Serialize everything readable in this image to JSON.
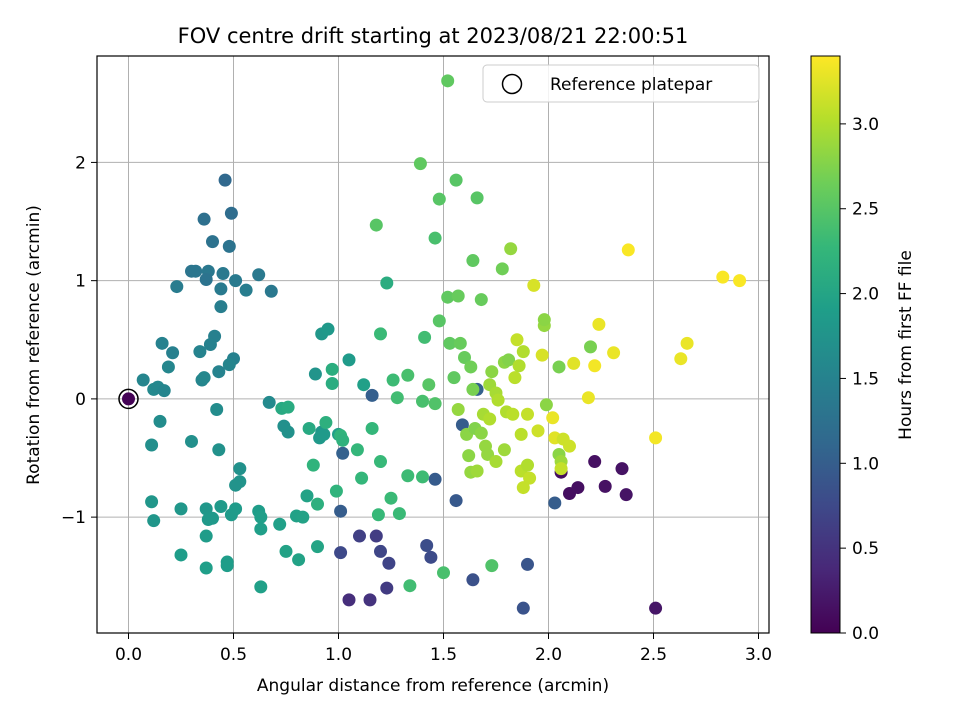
{
  "chart_data": {
    "type": "scatter",
    "title": "FOV centre drift starting at 2023/08/21 22:00:51",
    "xlabel": "Angular distance from reference (arcmin)",
    "ylabel": "Rotation from reference (arcmin)",
    "xlim": [
      -0.15,
      3.05
    ],
    "ylim": [
      -1.98,
      2.9
    ],
    "xticks": [
      0.0,
      0.5,
      1.0,
      1.5,
      2.0,
      2.5,
      3.0
    ],
    "xtick_labels": [
      "0.0",
      "0.5",
      "1.0",
      "1.5",
      "2.0",
      "2.5",
      "3.0"
    ],
    "yticks": [
      -1,
      0,
      1,
      2
    ],
    "ytick_labels": [
      "−1",
      "0",
      "1",
      "2"
    ],
    "grid": true,
    "legend": {
      "placement": "top-right",
      "entries": [
        "Reference platepar"
      ]
    },
    "reference_point": {
      "x": 0.0,
      "y": 0.0,
      "label": "Reference platepar"
    },
    "colorbar": {
      "label": "Hours from first FF file",
      "colormap": "viridis",
      "range": [
        0.0,
        3.4
      ],
      "ticks": [
        0.0,
        0.5,
        1.0,
        1.5,
        2.0,
        2.5,
        3.0
      ],
      "tick_labels": [
        "0.0",
        "0.5",
        "1.0",
        "1.5",
        "2.0",
        "2.5",
        "3.0"
      ]
    },
    "points": [
      {
        "x": 0.0,
        "y": 0.0,
        "c": 0.02
      },
      {
        "x": 2.06,
        "y": -0.62,
        "c": 0.12
      },
      {
        "x": 2.1,
        "y": -0.8,
        "c": 0.13
      },
      {
        "x": 2.14,
        "y": -0.75,
        "c": 0.14
      },
      {
        "x": 2.22,
        "y": -0.53,
        "c": 0.15
      },
      {
        "x": 2.27,
        "y": -0.74,
        "c": 0.16
      },
      {
        "x": 2.35,
        "y": -0.59,
        "c": 0.17
      },
      {
        "x": 2.37,
        "y": -0.81,
        "c": 0.18
      },
      {
        "x": 2.51,
        "y": -1.77,
        "c": 0.2
      },
      {
        "x": 1.05,
        "y": -1.7,
        "c": 0.45
      },
      {
        "x": 1.15,
        "y": -1.7,
        "c": 0.5
      },
      {
        "x": 1.23,
        "y": -1.6,
        "c": 0.6
      },
      {
        "x": 1.1,
        "y": -1.16,
        "c": 0.65
      },
      {
        "x": 1.18,
        "y": -1.16,
        "c": 0.62
      },
      {
        "x": 1.24,
        "y": -1.39,
        "c": 0.7
      },
      {
        "x": 1.01,
        "y": -1.3,
        "c": 0.75
      },
      {
        "x": 1.2,
        "y": -1.29,
        "c": 0.72
      },
      {
        "x": 1.42,
        "y": -1.24,
        "c": 0.8
      },
      {
        "x": 1.44,
        "y": -1.34,
        "c": 0.78
      },
      {
        "x": 1.64,
        "y": -1.53,
        "c": 0.85
      },
      {
        "x": 1.9,
        "y": -1.4,
        "c": 0.9
      },
      {
        "x": 1.88,
        "y": -1.77,
        "c": 0.88
      },
      {
        "x": 1.56,
        "y": -0.86,
        "c": 0.95
      },
      {
        "x": 1.46,
        "y": -0.68,
        "c": 0.98
      },
      {
        "x": 1.01,
        "y": -0.95,
        "c": 1.0
      },
      {
        "x": 1.02,
        "y": -0.46,
        "c": 1.05
      },
      {
        "x": 1.16,
        "y": 0.03,
        "c": 1.02
      },
      {
        "x": 1.59,
        "y": -0.22,
        "c": 1.0
      },
      {
        "x": 1.66,
        "y": 0.08,
        "c": 1.05
      },
      {
        "x": 2.03,
        "y": -0.88,
        "c": 1.0
      },
      {
        "x": 0.46,
        "y": 1.85,
        "c": 1.15
      },
      {
        "x": 0.49,
        "y": 1.57,
        "c": 1.2
      },
      {
        "x": 0.36,
        "y": 1.52,
        "c": 1.25
      },
      {
        "x": 0.4,
        "y": 1.33,
        "c": 1.28
      },
      {
        "x": 0.48,
        "y": 1.29,
        "c": 1.3
      },
      {
        "x": 0.3,
        "y": 1.08,
        "c": 1.32
      },
      {
        "x": 0.32,
        "y": 1.08,
        "c": 1.34
      },
      {
        "x": 0.38,
        "y": 1.08,
        "c": 1.36
      },
      {
        "x": 0.45,
        "y": 1.06,
        "c": 1.38
      },
      {
        "x": 0.51,
        "y": 1.0,
        "c": 1.4
      },
      {
        "x": 0.37,
        "y": 1.01,
        "c": 1.3
      },
      {
        "x": 0.23,
        "y": 0.95,
        "c": 1.42
      },
      {
        "x": 0.44,
        "y": 0.93,
        "c": 1.4
      },
      {
        "x": 0.56,
        "y": 0.92,
        "c": 1.44
      },
      {
        "x": 0.62,
        "y": 1.05,
        "c": 1.38
      },
      {
        "x": 0.68,
        "y": 0.91,
        "c": 1.36
      },
      {
        "x": 0.44,
        "y": 0.78,
        "c": 1.45
      },
      {
        "x": 0.41,
        "y": 0.53,
        "c": 1.48
      },
      {
        "x": 0.16,
        "y": 0.47,
        "c": 1.5
      },
      {
        "x": 0.34,
        "y": 0.4,
        "c": 1.52
      },
      {
        "x": 0.39,
        "y": 0.46,
        "c": 1.5
      },
      {
        "x": 0.21,
        "y": 0.39,
        "c": 1.48
      },
      {
        "x": 0.5,
        "y": 0.34,
        "c": 1.5
      },
      {
        "x": 0.48,
        "y": 0.29,
        "c": 1.55
      },
      {
        "x": 0.19,
        "y": 0.27,
        "c": 1.56
      },
      {
        "x": 0.43,
        "y": 0.23,
        "c": 1.52
      },
      {
        "x": 0.35,
        "y": 0.16,
        "c": 1.55
      },
      {
        "x": 0.36,
        "y": 0.18,
        "c": 1.58
      },
      {
        "x": 0.07,
        "y": 0.16,
        "c": 1.55
      },
      {
        "x": 0.12,
        "y": 0.08,
        "c": 1.6
      },
      {
        "x": 0.14,
        "y": 0.1,
        "c": 1.58
      },
      {
        "x": 0.17,
        "y": 0.07,
        "c": 1.55
      },
      {
        "x": 0.67,
        "y": -0.03,
        "c": 1.62
      },
      {
        "x": 0.42,
        "y": -0.09,
        "c": 1.65
      },
      {
        "x": 0.15,
        "y": -0.19,
        "c": 1.65
      },
      {
        "x": 0.11,
        "y": -0.39,
        "c": 1.68
      },
      {
        "x": 0.3,
        "y": -0.36,
        "c": 1.7
      },
      {
        "x": 0.43,
        "y": -0.43,
        "c": 1.72
      },
      {
        "x": 0.53,
        "y": -0.59,
        "c": 1.72
      },
      {
        "x": 0.53,
        "y": -0.7,
        "c": 1.75
      },
      {
        "x": 0.51,
        "y": -0.73,
        "c": 1.74
      },
      {
        "x": 0.11,
        "y": -0.87,
        "c": 1.78
      },
      {
        "x": 0.12,
        "y": -1.03,
        "c": 1.78
      },
      {
        "x": 0.25,
        "y": -0.93,
        "c": 1.8
      },
      {
        "x": 0.37,
        "y": -0.93,
        "c": 1.8
      },
      {
        "x": 0.38,
        "y": -1.02,
        "c": 1.82
      },
      {
        "x": 0.4,
        "y": -1.01,
        "c": 1.82
      },
      {
        "x": 0.44,
        "y": -0.91,
        "c": 1.84
      },
      {
        "x": 0.49,
        "y": -0.98,
        "c": 1.85
      },
      {
        "x": 0.51,
        "y": -0.93,
        "c": 1.85
      },
      {
        "x": 0.37,
        "y": -1.16,
        "c": 1.86
      },
      {
        "x": 0.47,
        "y": -1.38,
        "c": 1.88
      },
      {
        "x": 0.47,
        "y": -1.41,
        "c": 1.88
      },
      {
        "x": 0.25,
        "y": -1.32,
        "c": 1.88
      },
      {
        "x": 0.37,
        "y": -1.43,
        "c": 1.9
      },
      {
        "x": 0.63,
        "y": -1.59,
        "c": 1.92
      },
      {
        "x": 0.62,
        "y": -0.95,
        "c": 1.88
      },
      {
        "x": 0.63,
        "y": -1.0,
        "c": 1.9
      },
      {
        "x": 0.63,
        "y": -1.1,
        "c": 1.9
      },
      {
        "x": 0.72,
        "y": -1.06,
        "c": 1.92
      },
      {
        "x": 0.75,
        "y": -1.29,
        "c": 1.95
      },
      {
        "x": 0.81,
        "y": -1.36,
        "c": 1.95
      },
      {
        "x": 0.8,
        "y": -0.99,
        "c": 1.94
      },
      {
        "x": 0.85,
        "y": -0.82,
        "c": 1.95
      },
      {
        "x": 0.83,
        "y": -1.0,
        "c": 1.95
      },
      {
        "x": 0.9,
        "y": -1.25,
        "c": 1.98
      },
      {
        "x": 0.74,
        "y": -0.23,
        "c": 1.7
      },
      {
        "x": 0.76,
        "y": -0.28,
        "c": 1.72
      },
      {
        "x": 0.89,
        "y": 0.21,
        "c": 1.75
      },
      {
        "x": 0.92,
        "y": 0.55,
        "c": 1.8
      },
      {
        "x": 0.95,
        "y": 0.59,
        "c": 1.82
      },
      {
        "x": 0.92,
        "y": -0.28,
        "c": 1.8
      },
      {
        "x": 0.91,
        "y": -0.33,
        "c": 1.82
      },
      {
        "x": 0.93,
        "y": -0.3,
        "c": 1.84
      },
      {
        "x": 1.05,
        "y": 0.33,
        "c": 1.85
      },
      {
        "x": 1.0,
        "y": -0.3,
        "c": 1.9
      },
      {
        "x": 1.12,
        "y": 0.12,
        "c": 1.92
      },
      {
        "x": 0.73,
        "y": -0.08,
        "c": 2.05
      },
      {
        "x": 0.76,
        "y": -0.07,
        "c": 2.08
      },
      {
        "x": 0.86,
        "y": -0.25,
        "c": 2.05
      },
      {
        "x": 0.97,
        "y": 0.13,
        "c": 2.1
      },
      {
        "x": 0.97,
        "y": 0.25,
        "c": 2.12
      },
      {
        "x": 0.94,
        "y": -0.2,
        "c": 2.15
      },
      {
        "x": 0.9,
        "y": -0.89,
        "c": 2.15
      },
      {
        "x": 0.88,
        "y": -0.56,
        "c": 2.2
      },
      {
        "x": 0.99,
        "y": -0.78,
        "c": 2.2
      },
      {
        "x": 1.01,
        "y": -0.31,
        "c": 2.2
      },
      {
        "x": 1.02,
        "y": -0.35,
        "c": 2.18
      },
      {
        "x": 1.09,
        "y": -0.43,
        "c": 2.25
      },
      {
        "x": 1.11,
        "y": -0.67,
        "c": 2.25
      },
      {
        "x": 1.16,
        "y": -0.25,
        "c": 2.25
      },
      {
        "x": 1.19,
        "y": -0.98,
        "c": 2.28
      },
      {
        "x": 1.2,
        "y": -0.53,
        "c": 2.28
      },
      {
        "x": 1.25,
        "y": -0.84,
        "c": 2.3
      },
      {
        "x": 1.29,
        "y": -0.97,
        "c": 2.3
      },
      {
        "x": 1.33,
        "y": -0.65,
        "c": 2.32
      },
      {
        "x": 1.34,
        "y": -1.58,
        "c": 2.35
      },
      {
        "x": 1.4,
        "y": -0.66,
        "c": 2.32
      },
      {
        "x": 1.5,
        "y": -1.47,
        "c": 2.4
      },
      {
        "x": 1.73,
        "y": -1.41,
        "c": 2.45
      },
      {
        "x": 1.2,
        "y": 0.55,
        "c": 2.3
      },
      {
        "x": 1.23,
        "y": 0.98,
        "c": 2.1
      },
      {
        "x": 1.26,
        "y": 0.16,
        "c": 2.32
      },
      {
        "x": 1.28,
        "y": 0.01,
        "c": 2.35
      },
      {
        "x": 1.33,
        "y": 0.2,
        "c": 2.4
      },
      {
        "x": 1.41,
        "y": 0.52,
        "c": 2.35
      },
      {
        "x": 1.4,
        "y": -0.02,
        "c": 2.4
      },
      {
        "x": 1.43,
        "y": 0.12,
        "c": 2.5
      },
      {
        "x": 1.46,
        "y": -0.04,
        "c": 2.45
      },
      {
        "x": 1.48,
        "y": 0.66,
        "c": 2.5
      },
      {
        "x": 1.46,
        "y": 1.36,
        "c": 2.4
      },
      {
        "x": 1.48,
        "y": 1.69,
        "c": 2.5
      },
      {
        "x": 1.52,
        "y": 0.86,
        "c": 2.55
      },
      {
        "x": 1.57,
        "y": 0.87,
        "c": 2.6
      },
      {
        "x": 1.53,
        "y": 0.47,
        "c": 2.55
      },
      {
        "x": 1.58,
        "y": 0.47,
        "c": 2.6
      },
      {
        "x": 1.6,
        "y": 0.35,
        "c": 2.6
      },
      {
        "x": 1.63,
        "y": 0.27,
        "c": 2.65
      },
      {
        "x": 1.55,
        "y": 0.18,
        "c": 2.55
      },
      {
        "x": 1.56,
        "y": 1.85,
        "c": 2.5
      },
      {
        "x": 1.52,
        "y": 2.69,
        "c": 2.55
      },
      {
        "x": 1.39,
        "y": 1.99,
        "c": 2.55
      },
      {
        "x": 1.18,
        "y": 1.47,
        "c": 2.5
      },
      {
        "x": 1.64,
        "y": 1.17,
        "c": 2.55
      },
      {
        "x": 1.66,
        "y": 1.7,
        "c": 2.5
      },
      {
        "x": 1.68,
        "y": 0.84,
        "c": 2.6
      },
      {
        "x": 1.64,
        "y": 0.08,
        "c": 2.7
      },
      {
        "x": 1.57,
        "y": -0.09,
        "c": 2.85
      },
      {
        "x": 1.61,
        "y": -0.3,
        "c": 2.8
      },
      {
        "x": 1.62,
        "y": -0.48,
        "c": 2.8
      },
      {
        "x": 1.65,
        "y": -0.25,
        "c": 2.75
      },
      {
        "x": 1.68,
        "y": -0.29,
        "c": 2.8
      },
      {
        "x": 1.7,
        "y": -0.4,
        "c": 2.85
      },
      {
        "x": 1.71,
        "y": -0.47,
        "c": 2.85
      },
      {
        "x": 1.63,
        "y": -0.62,
        "c": 2.85
      },
      {
        "x": 1.66,
        "y": -0.61,
        "c": 2.9
      },
      {
        "x": 1.72,
        "y": 0.12,
        "c": 2.9
      },
      {
        "x": 1.73,
        "y": 0.23,
        "c": 2.8
      },
      {
        "x": 1.75,
        "y": 0.05,
        "c": 2.95
      },
      {
        "x": 1.76,
        "y": -0.01,
        "c": 3.0
      },
      {
        "x": 1.79,
        "y": 0.31,
        "c": 2.8
      },
      {
        "x": 1.81,
        "y": 0.33,
        "c": 2.75
      },
      {
        "x": 1.78,
        "y": 1.1,
        "c": 2.65
      },
      {
        "x": 1.82,
        "y": 1.27,
        "c": 2.85
      },
      {
        "x": 1.69,
        "y": -0.13,
        "c": 2.95
      },
      {
        "x": 1.72,
        "y": -0.17,
        "c": 3.0
      },
      {
        "x": 1.75,
        "y": -0.53,
        "c": 2.95
      },
      {
        "x": 1.79,
        "y": -0.43,
        "c": 2.9
      },
      {
        "x": 1.8,
        "y": -0.11,
        "c": 3.0
      },
      {
        "x": 1.83,
        "y": -0.13,
        "c": 3.05
      },
      {
        "x": 1.84,
        "y": 0.18,
        "c": 3.05
      },
      {
        "x": 1.85,
        "y": 0.5,
        "c": 3.1
      },
      {
        "x": 1.86,
        "y": 0.28,
        "c": 3.0
      },
      {
        "x": 1.87,
        "y": -0.3,
        "c": 3.05
      },
      {
        "x": 1.87,
        "y": -0.61,
        "c": 3.05
      },
      {
        "x": 1.88,
        "y": -0.75,
        "c": 3.1
      },
      {
        "x": 1.88,
        "y": 0.4,
        "c": 3.0
      },
      {
        "x": 1.9,
        "y": -0.13,
        "c": 3.1
      },
      {
        "x": 1.91,
        "y": -0.67,
        "c": 3.1
      },
      {
        "x": 1.9,
        "y": -0.56,
        "c": 3.0
      },
      {
        "x": 1.93,
        "y": 0.96,
        "c": 3.2
      },
      {
        "x": 1.95,
        "y": -0.27,
        "c": 3.15
      },
      {
        "x": 1.97,
        "y": 0.37,
        "c": 3.2
      },
      {
        "x": 1.98,
        "y": 0.62,
        "c": 2.85
      },
      {
        "x": 1.98,
        "y": 0.67,
        "c": 2.8
      },
      {
        "x": 1.99,
        "y": -0.05,
        "c": 2.8
      },
      {
        "x": 2.02,
        "y": -0.16,
        "c": 3.3
      },
      {
        "x": 2.03,
        "y": -0.33,
        "c": 3.25
      },
      {
        "x": 2.05,
        "y": -0.47,
        "c": 2.8
      },
      {
        "x": 2.05,
        "y": 0.27,
        "c": 2.7
      },
      {
        "x": 2.06,
        "y": -0.53,
        "c": 2.9
      },
      {
        "x": 2.06,
        "y": -0.59,
        "c": 3.1
      },
      {
        "x": 2.07,
        "y": -0.34,
        "c": 3.15
      },
      {
        "x": 2.1,
        "y": -0.4,
        "c": 3.15
      },
      {
        "x": 2.12,
        "y": 0.3,
        "c": 3.25
      },
      {
        "x": 2.19,
        "y": 0.01,
        "c": 3.3
      },
      {
        "x": 2.2,
        "y": 0.44,
        "c": 2.7
      },
      {
        "x": 2.22,
        "y": 0.28,
        "c": 3.35
      },
      {
        "x": 2.24,
        "y": 0.63,
        "c": 3.3
      },
      {
        "x": 2.31,
        "y": 0.39,
        "c": 3.3
      },
      {
        "x": 2.38,
        "y": 1.26,
        "c": 3.38
      },
      {
        "x": 2.51,
        "y": -0.33,
        "c": 3.35
      },
      {
        "x": 2.63,
        "y": 0.34,
        "c": 3.3
      },
      {
        "x": 2.66,
        "y": 0.47,
        "c": 3.3
      },
      {
        "x": 2.83,
        "y": 1.03,
        "c": 3.38
      },
      {
        "x": 2.91,
        "y": 1.0,
        "c": 3.38
      }
    ]
  }
}
